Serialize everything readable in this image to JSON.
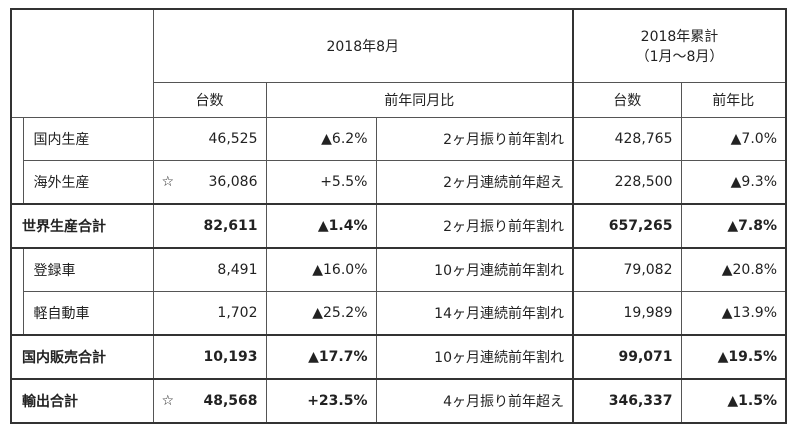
{
  "header": {
    "month": "2018年8月",
    "ytd": "2018年累計",
    "ytd_period": "（1月～8月）",
    "units": "台数",
    "yoy_month": "前年同月比",
    "ytd_units": "台数",
    "ytd_yoy": "前年比"
  },
  "groups": [
    {
      "rows": [
        {
          "label": "国内生産",
          "units": "46,525",
          "yoy": "▲6.2%",
          "note": "2ヶ月振り前年割れ",
          "ytd_units": "428,765",
          "ytd_yoy": "▲7.0%"
        },
        {
          "label": "海外生産",
          "mark": "☆",
          "units": "36,086",
          "yoy": "+5.5%",
          "note": "2ヶ月連続前年超え",
          "ytd_units": "228,500",
          "ytd_yoy": "▲9.3%"
        }
      ],
      "total": {
        "label": "世界生産合計",
        "units": "82,611",
        "yoy": "▲1.4%",
        "note": "2ヶ月振り前年割れ",
        "ytd_units": "657,265",
        "ytd_yoy": "▲7.8%"
      }
    },
    {
      "rows": [
        {
          "label": "登録車",
          "units": "8,491",
          "yoy": "▲16.0%",
          "note": "10ヶ月連続前年割れ",
          "ytd_units": "79,082",
          "ytd_yoy": "▲20.8%"
        },
        {
          "label": "軽自動車",
          "units": "1,702",
          "yoy": "▲25.2%",
          "note": "14ヶ月連続前年割れ",
          "ytd_units": "19,989",
          "ytd_yoy": "▲13.9%"
        }
      ],
      "total": {
        "label": "国内販売合計",
        "units": "10,193",
        "yoy": "▲17.7%",
        "note": "10ヶ月連続前年割れ",
        "ytd_units": "99,071",
        "ytd_yoy": "▲19.5%"
      }
    },
    {
      "total": {
        "label": "輸出合計",
        "mark": "☆",
        "units": "48,568",
        "yoy": "+23.5%",
        "note": "4ヶ月振り前年超え",
        "ytd_units": "346,337",
        "ytd_yoy": "▲1.5%"
      }
    }
  ]
}
